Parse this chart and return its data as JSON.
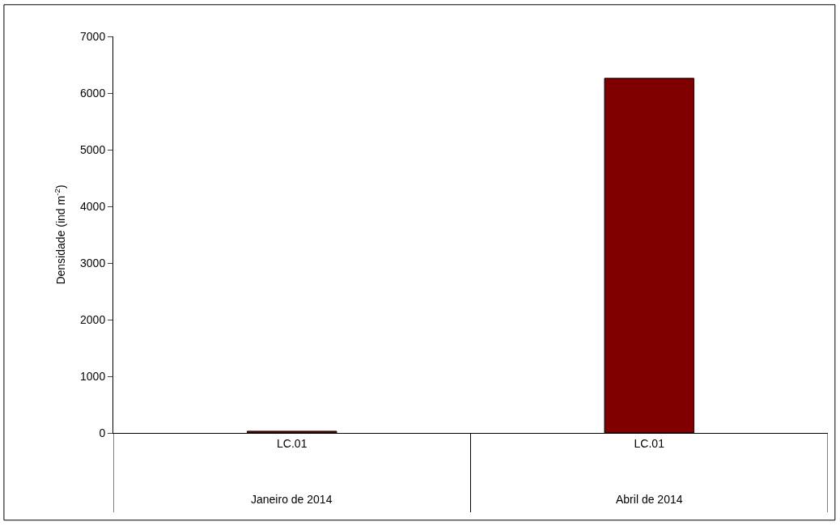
{
  "chart_data": {
    "type": "bar",
    "ylabel": "Densidade (ind m$^{-2}$)",
    "categories": [
      "LC.01",
      "LC.01"
    ],
    "series": [
      {
        "color": "#800000",
        "values": [
          30,
          6260
        ]
      }
    ],
    "annotations": [
      "Janeiro de 2014",
      "Abril de 2014"
    ],
    "ylim": [
      0,
      7000
    ],
    "yticks": [
      0,
      1000,
      2000,
      3000,
      4000,
      5000,
      6000,
      7000
    ],
    "legend": false
  }
}
